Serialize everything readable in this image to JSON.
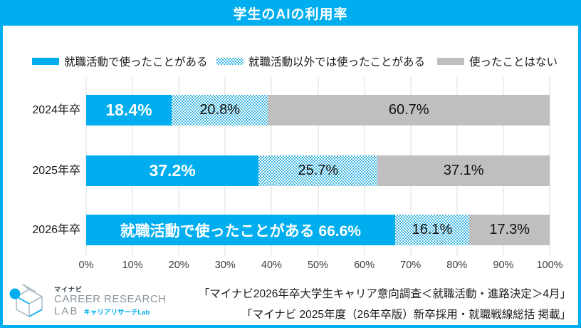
{
  "header": {
    "title": "学生のAIの利用率"
  },
  "colors": {
    "brand_blue": "#00AEEF",
    "pattern_blue": "#40B7E2",
    "gray_segment": "#BFBFBF",
    "gridline": "#DCDCDC",
    "title_text": "#FFFFFF",
    "body_text": "#1a1a1a"
  },
  "chart_data": {
    "type": "bar",
    "stacked": true,
    "orientation": "horizontal",
    "title": "学生のAIの利用率",
    "categories": [
      "2024年卒",
      "2025年卒",
      "2026年卒"
    ],
    "series": [
      {
        "name": "就職活動で使ったことがある",
        "style": "solid-blue",
        "values": [
          18.4,
          37.2,
          66.6
        ]
      },
      {
        "name": "就職活動以外では使ったことがある",
        "style": "checker-blue",
        "values": [
          20.8,
          25.7,
          16.1
        ]
      },
      {
        "name": "使ったことはない",
        "style": "solid-gray",
        "values": [
          60.7,
          37.1,
          17.3
        ]
      }
    ],
    "bar_labels": [
      [
        "18.4%",
        "20.8%",
        "60.7%"
      ],
      [
        "37.2%",
        "25.7%",
        "37.1%"
      ],
      [
        "就職活動で使ったことがある 66.6%",
        "16.1%",
        "17.3%"
      ]
    ],
    "x_ticks": [
      "0%",
      "10%",
      "20%",
      "30%",
      "40%",
      "50%",
      "60%",
      "70%",
      "80%",
      "90%",
      "100%"
    ],
    "xlim": [
      0,
      100
    ],
    "grid": true,
    "legend_position": "top"
  },
  "footer": {
    "source_line1": "「マイナビ2026年卒大学生キャリア意向調査＜就職活動・進路決定＞4月」",
    "source_line2": "「マイナビ 2025年度（26年卒版）新卒採用・就職戦線総括 掲載」",
    "logo": {
      "brand_small": "マイナビ",
      "line1": "CAREER RESEARCH",
      "line2": "LAB",
      "line2_suffix": "キャリアリサーチLab"
    }
  }
}
